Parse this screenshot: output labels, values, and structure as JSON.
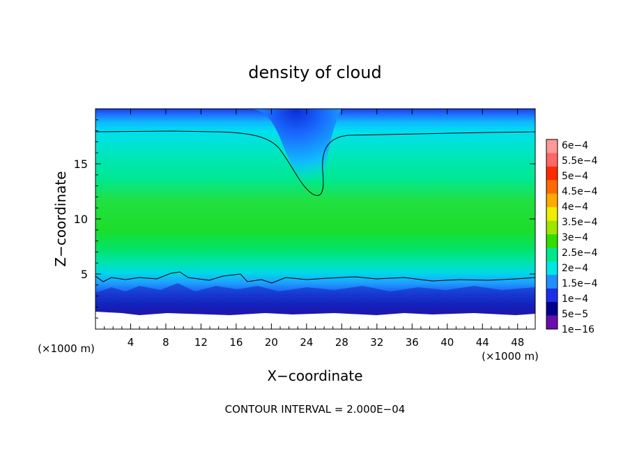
{
  "chart_data": {
    "type": "heatmap",
    "title": "density of cloud",
    "xlabel": "X−coordinate",
    "ylabel": "Z−coordinate",
    "x_unit": "(×1000 m)",
    "y_unit": "(×1000 m)",
    "footer": "CONTOUR INTERVAL = 2.000E−04",
    "xlim": [
      0,
      50
    ],
    "ylim": [
      0,
      20
    ],
    "x_ticks": [
      4,
      8,
      12,
      16,
      20,
      24,
      28,
      32,
      36,
      40,
      44,
      48
    ],
    "y_ticks": [
      5,
      10,
      15
    ],
    "grid": false,
    "colorbar": {
      "labels": [
        "6e−4",
        "5.5e−4",
        "5e−4",
        "4.5e−4",
        "4e−4",
        "3.5e−4",
        "3e−4",
        "2.5e−4",
        "2e−4",
        "1.5e−4",
        "1e−4",
        "5e−5",
        "1e−16"
      ],
      "values": [
        0.0006,
        0.00055,
        0.0005,
        0.00045,
        0.0004,
        0.00035,
        0.0003,
        0.00025,
        0.0002,
        0.00015,
        0.0001,
        5e-05,
        1e-16
      ],
      "colors": [
        "#ff9999",
        "#ff6666",
        "#ff2a00",
        "#ff6a00",
        "#ffaa00",
        "#eeee00",
        "#a0e600",
        "#33dd00",
        "#00e88c",
        "#00e6e6",
        "#1f8fff",
        "#1a2fe6",
        "#00008b",
        "#6a0dad"
      ]
    },
    "contour_level": 0.0002
  }
}
